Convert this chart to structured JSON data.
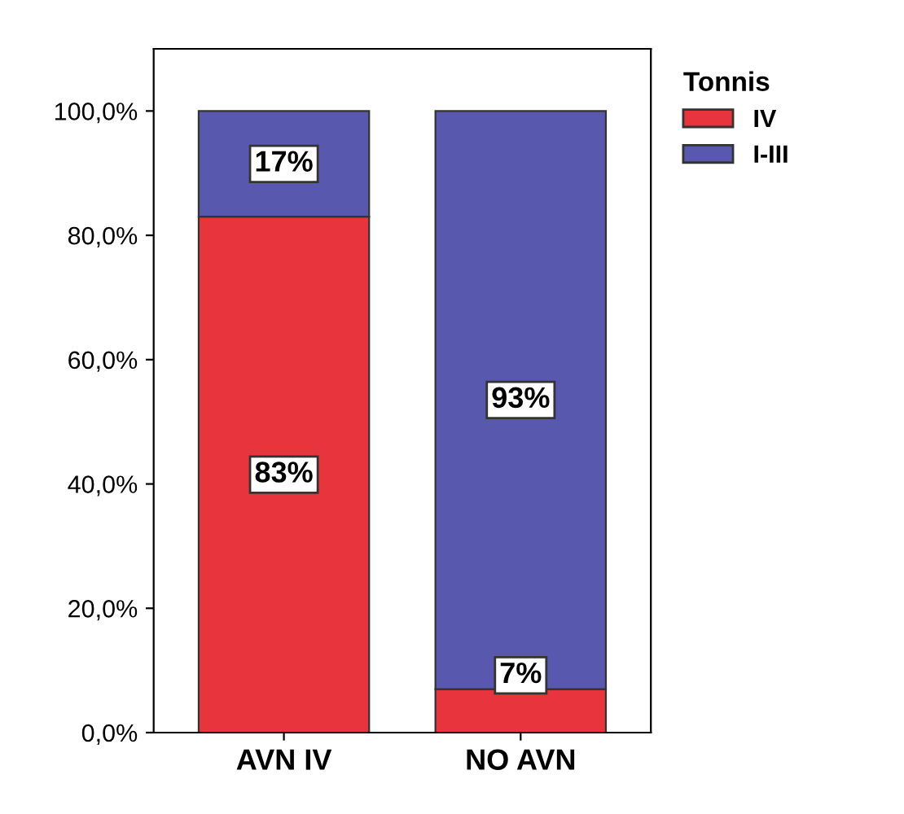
{
  "chart_data": {
    "type": "bar",
    "stacked": true,
    "categories": [
      "AVN IV",
      "NO AVN"
    ],
    "series": [
      {
        "name": "IV",
        "color": "#e8343c",
        "values": [
          83,
          7
        ],
        "value_labels": [
          "83%",
          "7%"
        ]
      },
      {
        "name": "I-III",
        "color": "#5858ae",
        "values": [
          17,
          93
        ],
        "value_labels": [
          "17%",
          "93%"
        ]
      }
    ],
    "legend_title": "Tonnis",
    "legend": "top right",
    "grid": false,
    "ylim": [
      0,
      110
    ],
    "yticks": [
      {
        "value": 0,
        "label": "0,0%"
      },
      {
        "value": 20,
        "label": "20,0%"
      },
      {
        "value": 40,
        "label": "40,0%"
      },
      {
        "value": 60,
        "label": "60,0%"
      },
      {
        "value": 80,
        "label": "80,0%"
      },
      {
        "value": 100,
        "label": "100,0%"
      }
    ]
  }
}
